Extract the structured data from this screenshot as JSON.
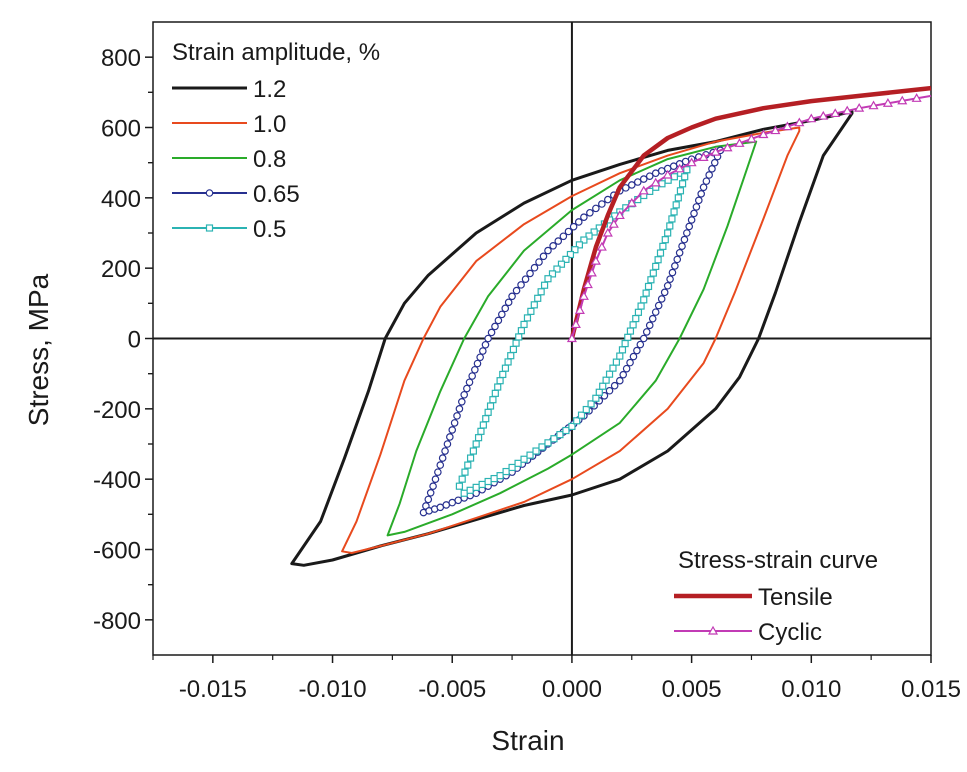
{
  "chart_data": {
    "type": "line",
    "xlabel": "Strain",
    "ylabel": "Stress, MPa",
    "xlim": [
      -0.0175,
      0.015
    ],
    "ylim": [
      -900,
      900
    ],
    "x_ticks": [
      -0.015,
      -0.01,
      -0.005,
      0.0,
      0.005,
      0.01,
      0.015
    ],
    "x_tick_labels": [
      "-0.015",
      "-0.010",
      "-0.005",
      "0.000",
      "0.005",
      "0.010",
      "0.015"
    ],
    "y_ticks": [
      -800,
      -600,
      -400,
      -200,
      0,
      200,
      400,
      600,
      800
    ],
    "y_tick_labels": [
      "-800",
      "-600",
      "-400",
      "-200",
      "0",
      "200",
      "400",
      "600",
      "800"
    ],
    "grid": false,
    "zero_lines": true,
    "legends": [
      {
        "title": "Strain amplitude, %",
        "placement": "top-left",
        "entries": [
          "1.2",
          "1.0",
          "0.8",
          "0.65",
          "0.5"
        ]
      },
      {
        "title": "Stress-strain curve",
        "placement": "bottom-right",
        "entries": [
          "Tensile",
          "Cyclic"
        ]
      }
    ],
    "series": [
      {
        "name": "1.2",
        "kind": "loop",
        "color": "#1a1a1a",
        "marker": "none",
        "x": [
          0.0117,
          0.01,
          0.008,
          0.006,
          0.004,
          0.002,
          0.0,
          -0.002,
          -0.004,
          -0.006,
          -0.007,
          -0.0078,
          -0.0085,
          -0.0095,
          -0.0105,
          -0.0117,
          -0.0112,
          -0.01,
          -0.008,
          -0.006,
          -0.004,
          -0.002,
          0.0,
          0.002,
          0.004,
          0.006,
          0.007,
          0.0078,
          0.0085,
          0.0095,
          0.0105,
          0.0117
        ],
        "y": [
          645,
          620,
          595,
          560,
          535,
          495,
          450,
          385,
          300,
          180,
          100,
          0,
          -150,
          -340,
          -520,
          -640,
          -645,
          -630,
          -590,
          -555,
          -515,
          -475,
          -445,
          -400,
          -320,
          -200,
          -110,
          0,
          130,
          330,
          520,
          640
        ]
      },
      {
        "name": "1.0",
        "kind": "loop",
        "color": "#e84a1e",
        "marker": "none",
        "x": [
          0.0095,
          0.008,
          0.006,
          0.004,
          0.002,
          0.0,
          -0.002,
          -0.004,
          -0.0055,
          -0.0062,
          -0.007,
          -0.008,
          -0.009,
          -0.0096,
          -0.0092,
          -0.008,
          -0.006,
          -0.004,
          -0.002,
          0.0,
          0.002,
          0.004,
          0.0055,
          0.006,
          0.0068,
          0.008,
          0.009,
          0.0095
        ],
        "y": [
          600,
          585,
          560,
          520,
          470,
          405,
          325,
          220,
          90,
          0,
          -120,
          -330,
          -520,
          -605,
          -610,
          -590,
          -555,
          -510,
          -465,
          -400,
          -320,
          -200,
          -70,
          0,
          130,
          340,
          520,
          590
        ]
      },
      {
        "name": "0.8",
        "kind": "loop",
        "color": "#2aab2a",
        "marker": "none",
        "x": [
          0.0077,
          0.006,
          0.004,
          0.002,
          0.0,
          -0.002,
          -0.0035,
          -0.0045,
          -0.0055,
          -0.0065,
          -0.0072,
          -0.0077,
          -0.007,
          -0.005,
          -0.003,
          -0.001,
          0.0,
          0.002,
          0.0035,
          0.0045,
          0.0055,
          0.0065,
          0.0072,
          0.0077
        ],
        "y": [
          560,
          545,
          510,
          450,
          365,
          250,
          120,
          0,
          -150,
          -320,
          -470,
          -560,
          -550,
          -500,
          -440,
          -370,
          -330,
          -240,
          -120,
          0,
          140,
          320,
          460,
          560
        ]
      },
      {
        "name": "0.65",
        "kind": "loop",
        "color": "#27308f",
        "marker": "circle",
        "x": [
          0.0062,
          0.005,
          0.0035,
          0.002,
          0.0005,
          -0.001,
          -0.0025,
          -0.0035,
          -0.0045,
          -0.0052,
          -0.0058,
          -0.0062,
          -0.0055,
          -0.004,
          -0.0025,
          -0.001,
          0.0005,
          0.002,
          0.003,
          0.004,
          0.0048,
          0.0055,
          0.0062
        ],
        "y": [
          535,
          510,
          470,
          420,
          345,
          250,
          120,
          0,
          -160,
          -300,
          -420,
          -495,
          -480,
          -440,
          -380,
          -300,
          -220,
          -120,
          0,
          150,
          300,
          430,
          535
        ]
      },
      {
        "name": "0.5",
        "kind": "loop",
        "color": "#2bb3b3",
        "marker": "square",
        "x": [
          0.0048,
          0.0035,
          0.002,
          0.0005,
          -0.001,
          -0.002,
          -0.003,
          -0.004,
          -0.0047,
          -0.0045,
          -0.003,
          -0.0015,
          0.0,
          0.001,
          0.002,
          0.003,
          0.004,
          0.0048
        ],
        "y": [
          480,
          430,
          360,
          280,
          170,
          40,
          -120,
          -300,
          -420,
          -440,
          -390,
          -320,
          -250,
          -170,
          -50,
          110,
          300,
          480
        ]
      },
      {
        "name": "Tensile",
        "kind": "curve",
        "color": "#b51f24",
        "marker": "none",
        "x": [
          0.0,
          0.0005,
          0.001,
          0.0015,
          0.002,
          0.003,
          0.004,
          0.005,
          0.006,
          0.008,
          0.01,
          0.012,
          0.015
        ],
        "y": [
          0,
          140,
          260,
          350,
          430,
          520,
          570,
          600,
          625,
          655,
          675,
          690,
          712
        ]
      },
      {
        "name": "Cyclic",
        "kind": "curve",
        "color": "#c23bb5",
        "marker": "triangle",
        "x": [
          0.0,
          0.0005,
          0.001,
          0.0015,
          0.002,
          0.003,
          0.004,
          0.005,
          0.006,
          0.008,
          0.01,
          0.012,
          0.015
        ],
        "y": [
          0,
          120,
          220,
          300,
          350,
          420,
          465,
          500,
          530,
          580,
          625,
          655,
          690
        ]
      }
    ]
  }
}
